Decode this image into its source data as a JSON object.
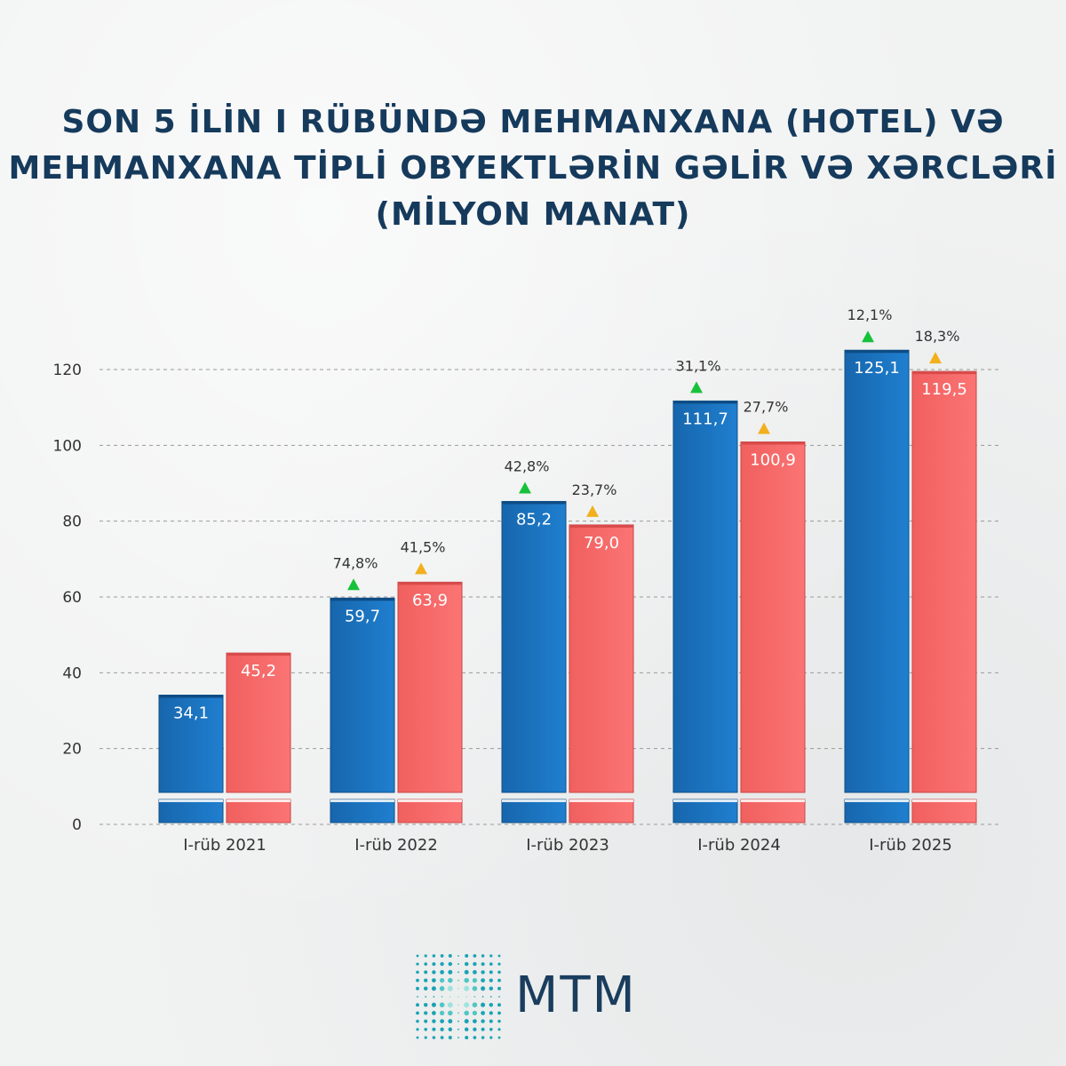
{
  "title": {
    "line1": "SON 5 İLİN I RÜBÜNDƏ MEHMANXANA (HOTEL) VƏ",
    "line2": "MEHMANXANA TİPLİ OBYEKTLƏRİN GƏLİR VƏ XƏRCLƏRİ",
    "line3": "(MİLYON MANAT)"
  },
  "logo": {
    "text": "MTM",
    "icon": "mtm-logo-icon"
  },
  "colors": {
    "income": "#1b74c0",
    "expense": "#f56a6a",
    "up_green": "#17c23a",
    "up_orange": "#f2b01e",
    "axis_text": "#333333",
    "grid": "#9a9a9a"
  },
  "chart_data": {
    "type": "bar",
    "categories": [
      "I-rüb 2021",
      "I-rüb 2022",
      "I-rüb 2023",
      "I-rüb 2024",
      "I-rüb 2025"
    ],
    "series": [
      {
        "values": [
          34.1,
          59.7,
          85.2,
          111.7,
          125.1
        ],
        "value_labels": [
          "34,1",
          "59,7",
          "85,2",
          "111,7",
          "125,1"
        ],
        "change_labels": [
          "",
          "74,8%",
          "42,8%",
          "31,1%",
          "12,1%"
        ],
        "color": "#1b74c0",
        "change_marker_color": "#17c23a"
      },
      {
        "values": [
          45.2,
          63.9,
          79.0,
          100.9,
          119.5
        ],
        "value_labels": [
          "45,2",
          "63,9",
          "79,0",
          "100,9",
          "119,5"
        ],
        "change_labels": [
          "",
          "41,5%",
          "23,7%",
          "27,7%",
          "18,3%"
        ],
        "color": "#f56a6a",
        "change_marker_color": "#f2b01e"
      }
    ],
    "y_ticks": [
      0,
      20,
      40,
      60,
      80,
      100,
      120
    ],
    "ylim": [
      0,
      120
    ],
    "xlabel": "",
    "ylabel": "",
    "grid": true,
    "axis_break": true
  }
}
